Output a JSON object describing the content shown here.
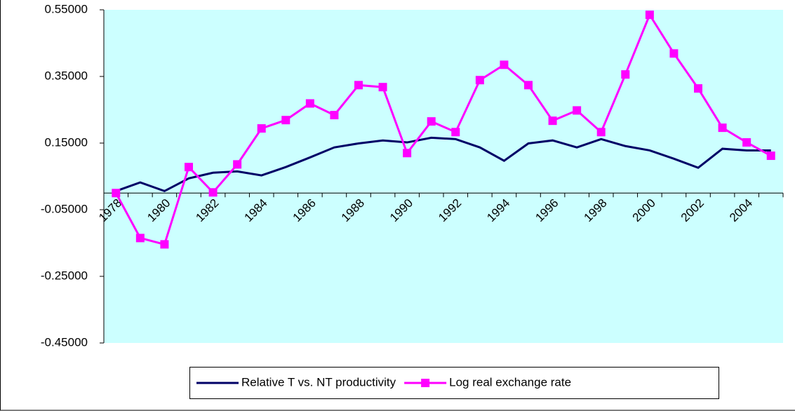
{
  "chart_data": {
    "type": "line",
    "categories": [
      "1978",
      null,
      "1980",
      null,
      "1982",
      null,
      "1984",
      null,
      "1986",
      null,
      "1988",
      null,
      "1990",
      null,
      "1992",
      null,
      "1994",
      null,
      "1996",
      null,
      "1998",
      null,
      "2000",
      null,
      "2002",
      null,
      "2004",
      null
    ],
    "series": [
      {
        "name": "Relative T vs. NT productivity",
        "color": "#000066",
        "marker": "none",
        "values": [
          0.006,
          0.032,
          0.006,
          0.044,
          0.061,
          0.065,
          0.053,
          0.078,
          0.107,
          0.137,
          0.149,
          0.158,
          0.152,
          0.166,
          0.162,
          0.137,
          0.097,
          0.149,
          0.158,
          0.137,
          0.162,
          0.141,
          0.128,
          0.103,
          0.076,
          0.133,
          0.128,
          0.128
        ]
      },
      {
        "name": "Log real exchange rate",
        "color": "#ff00ff",
        "marker": "square",
        "values": [
          0.0,
          -0.135,
          -0.154,
          0.078,
          0.002,
          0.086,
          0.194,
          0.219,
          0.269,
          0.234,
          0.324,
          0.318,
          0.12,
          0.215,
          0.183,
          0.339,
          0.385,
          0.324,
          0.217,
          0.248,
          0.183,
          0.356,
          0.535,
          0.419,
          0.314,
          0.196,
          0.152,
          0.112
        ]
      }
    ],
    "ylim": [
      -0.45,
      0.55
    ],
    "yticks": [
      {
        "value": -0.45,
        "label": "-0.45000"
      },
      {
        "value": -0.25,
        "label": "-0.25000"
      },
      {
        "value": -0.05,
        "label": "-0.05000"
      },
      {
        "value": 0.15,
        "label": "0.15000"
      },
      {
        "value": 0.35,
        "label": "0.35000"
      },
      {
        "value": 0.55,
        "label": "0.55000"
      }
    ],
    "plot_background": "#ccffff",
    "legend": "bottom"
  }
}
